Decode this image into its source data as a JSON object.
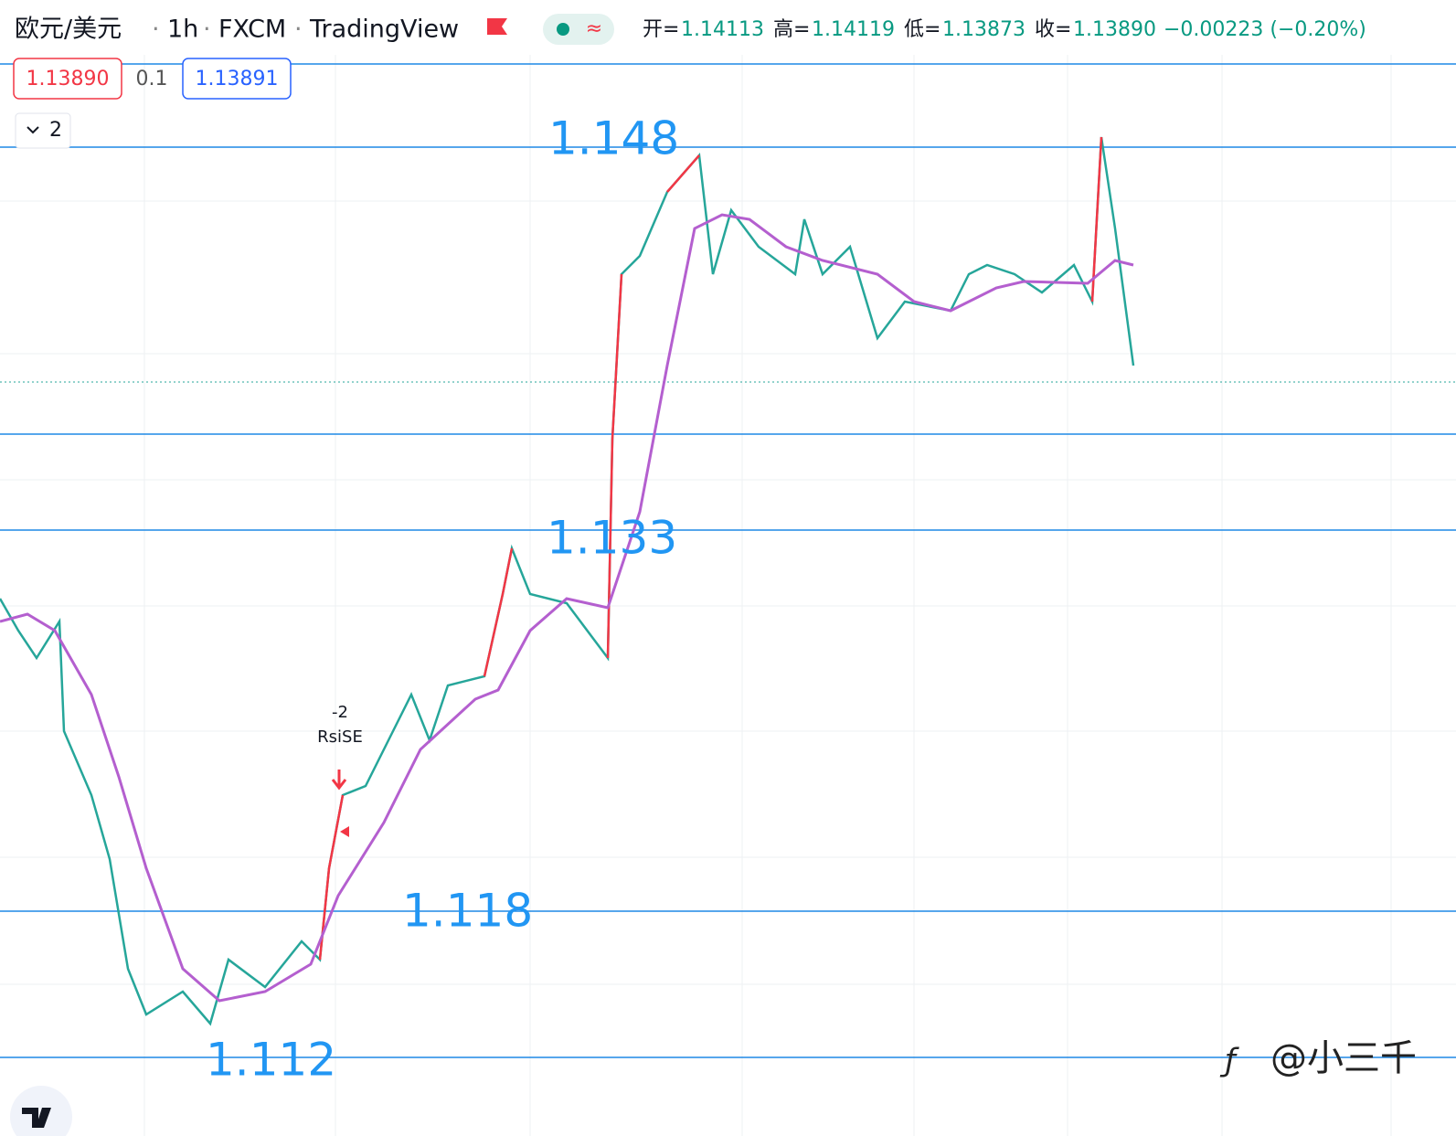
{
  "header": {
    "symbol": "欧元/美元",
    "interval": "1h",
    "exchange": "FXCM",
    "platform": "TradingView",
    "ohlc": [
      {
        "label": "开=",
        "value": "1.14113"
      },
      {
        "label": "高=",
        "value": "1.14119"
      },
      {
        "label": "低=",
        "value": "1.13873"
      },
      {
        "label": "收=",
        "value": "1.13890"
      }
    ],
    "change": "−0.00223 (−0.20%)"
  },
  "quotes": {
    "bid": "1.13890",
    "spread": "0.1",
    "ask": "1.13891"
  },
  "indicators": {
    "count": "2"
  },
  "levels": [
    "1.148",
    "1.133",
    "1.118",
    "1.112"
  ],
  "signal": {
    "value": "-2",
    "name": "RsiSE"
  },
  "watermark": "@小三千"
}
